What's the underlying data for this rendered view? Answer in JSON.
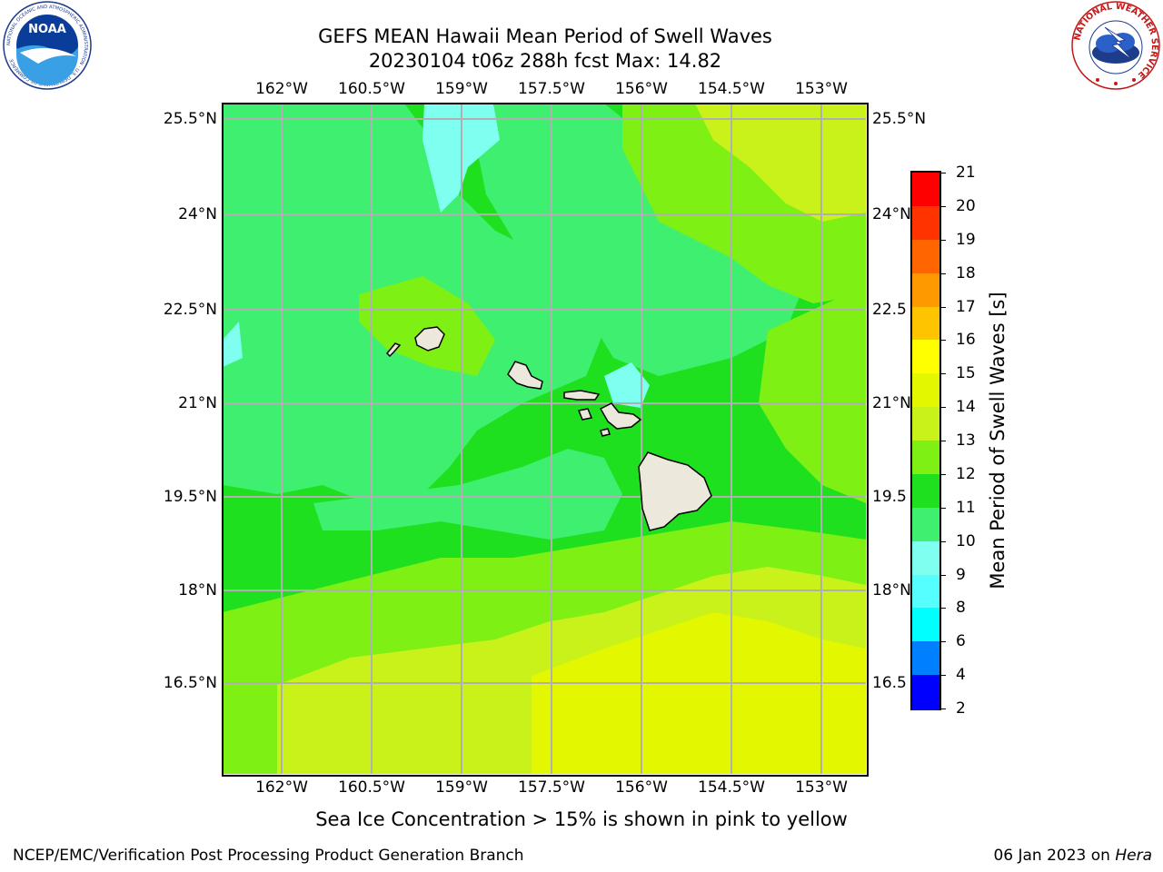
{
  "title": {
    "line1": "GEFS MEAN Hawaii Mean Period of Swell Waves",
    "line2": "20230104 t06z 288h fcst   Max: 14.82"
  },
  "map": {
    "lon_labels": [
      "162°W",
      "160.5°W",
      "159°W",
      "157.5°W",
      "156°W",
      "154.5°W",
      "153°W"
    ],
    "lat_labels": [
      "25.5°N",
      "24°N",
      "22.5°N",
      "21°N",
      "19.5°N",
      "18°N",
      "16.5°N"
    ],
    "lat_labels_right": [
      "25.5°N",
      "24°N",
      "22.5",
      "21°N",
      "19.5",
      "18°N",
      "16.5"
    ],
    "fill_colors": {
      "band_10_11": "#3fef6f",
      "band_11_12": "#1fe01f",
      "band_12_13": "#7ff014",
      "band_13_14": "#c8f21a",
      "band_14_15": "#e2f700",
      "band_9_10": "#7ffff0",
      "land": "#ece9dc"
    },
    "islands": [
      "Niihau",
      "Kauai",
      "Oahu",
      "Molokai",
      "Maui",
      "Lanai",
      "Kahoolawe",
      "Hawaii"
    ]
  },
  "colorbar": {
    "title": "Mean Period of Swell Waves [s]",
    "levels": [
      "21",
      "20",
      "19",
      "18",
      "17",
      "16",
      "15",
      "14",
      "13",
      "12",
      "11",
      "10",
      "9",
      "8",
      "6",
      "4",
      "2"
    ],
    "colors": [
      "#ff0000",
      "#ff3300",
      "#ff6600",
      "#ff9900",
      "#ffc400",
      "#ffff00",
      "#e2f700",
      "#c8f21a",
      "#7ff014",
      "#1fe01f",
      "#3fef6f",
      "#7ffff0",
      "#55ffff",
      "#00ffff",
      "#0080ff",
      "#0000ff"
    ]
  },
  "caption": "Sea Ice Concentration > 15% is shown in pink to yellow",
  "footer": {
    "left": "NCEP/EMC/Verification Post Processing Product Generation Branch",
    "right_date": "06 Jan 2023 on ",
    "right_host": "Hera"
  },
  "logos": {
    "noaa_text": "NOAA",
    "noaa_ring": "NATIONAL OCEANIC AND ATMOSPHERIC ADMINISTRATION · U.S. DEPARTMENT OF COMMERCE",
    "nws_ring": "NATIONAL WEATHER SERVICE"
  }
}
